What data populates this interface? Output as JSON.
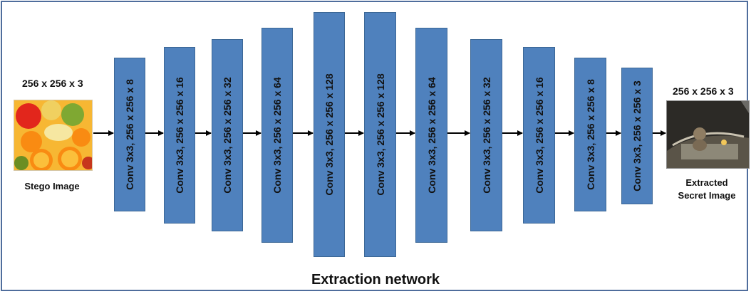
{
  "title": "Extraction network",
  "input": {
    "dimensions": "256 x 256 x 3",
    "caption": "Stego Image"
  },
  "output": {
    "dimensions": "256 x 256 x 3",
    "caption_line1": "Extracted",
    "caption_line2": "Secret Image"
  },
  "layers": [
    {
      "label": "Conv 3x3, 256 x 256 x 8"
    },
    {
      "label": "Conv 3x3, 256 x 256 x 16"
    },
    {
      "label": "Conv 3x3, 256 x 256 x 32"
    },
    {
      "label": "Conv 3x3, 256 x 256 x 64"
    },
    {
      "label": "Conv 3x3, 256 x 256 x 128"
    },
    {
      "label": "Conv 3x3, 256 x 256 x 128"
    },
    {
      "label": "Conv 3x3, 256 x 256 x 64"
    },
    {
      "label": "Conv 3x3, 256 x 256 x 32"
    },
    {
      "label": "Conv 3x3, 256 x 256 x 16"
    },
    {
      "label": "Conv 3x3, 256 x 256 x 8"
    },
    {
      "label": "Conv 3x3, 256 x 256 x 3"
    }
  ],
  "colors": {
    "block_fill": "#4f81bd",
    "block_border": "#3c6796",
    "frame_border": "#4f6d9c",
    "arrow": "#000000"
  }
}
